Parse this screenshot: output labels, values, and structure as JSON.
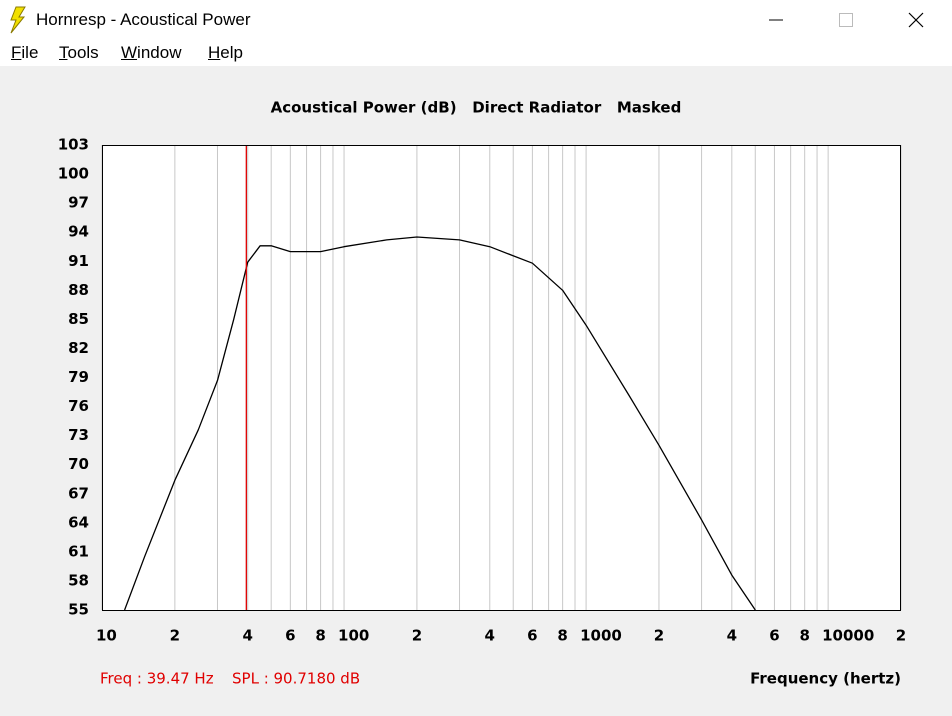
{
  "window": {
    "title": "Hornresp - Acoustical Power"
  },
  "menu": [
    "File",
    "Tools",
    "Window",
    "Help"
  ],
  "chart_data": {
    "type": "line",
    "title": "Acoustical Power (dB)   Direct Radiator   Masked",
    "xlabel": "Frequency (hertz)",
    "xscale": "log",
    "grid": "x",
    "x": [
      12.4,
      15,
      20,
      25,
      30,
      35,
      40,
      45,
      50,
      60,
      80,
      100,
      150,
      200,
      300,
      400,
      600,
      800,
      1000,
      1500,
      2000,
      3000,
      4000,
      5000
    ],
    "series": [
      {
        "color": "#000000",
        "values": [
          55,
          60.5,
          68.4,
          73.6,
          78.7,
          85,
          90.9,
          92.6,
          92.6,
          92.0,
          92.0,
          92.5,
          93.2,
          93.5,
          93.2,
          92.5,
          90.8,
          88.0,
          84.4,
          77.2,
          72.0,
          64.3,
          58.6,
          55
        ]
      }
    ],
    "xlim": [
      10,
      20000
    ],
    "ylim": [
      55,
      103
    ],
    "xticks": [
      10,
      {
        "value": 20,
        "label": "2"
      },
      {
        "value": 30,
        "label": null
      },
      {
        "value": 40,
        "label": "4"
      },
      {
        "value": 50,
        "label": null
      },
      {
        "value": 60,
        "label": "6"
      },
      {
        "value": 70,
        "label": null
      },
      {
        "value": 80,
        "label": "8"
      },
      {
        "value": 90,
        "label": null
      },
      100,
      {
        "value": 200,
        "label": "2"
      },
      {
        "value": 300,
        "label": null
      },
      {
        "value": 400,
        "label": "4"
      },
      {
        "value": 500,
        "label": null
      },
      {
        "value": 600,
        "label": "6"
      },
      {
        "value": 700,
        "label": null
      },
      {
        "value": 800,
        "label": "8"
      },
      {
        "value": 900,
        "label": null
      },
      1000,
      {
        "value": 2000,
        "label": "2"
      },
      {
        "value": 3000,
        "label": null
      },
      {
        "value": 4000,
        "label": "4"
      },
      {
        "value": 5000,
        "label": null
      },
      {
        "value": 6000,
        "label": "6"
      },
      {
        "value": 7000,
        "label": null
      },
      {
        "value": 8000,
        "label": "8"
      },
      {
        "value": 9000,
        "label": null
      },
      10000,
      {
        "value": 20000,
        "label": "2"
      }
    ],
    "yticks": [
      55,
      58,
      61,
      64,
      67,
      70,
      73,
      76,
      79,
      82,
      85,
      88,
      91,
      94,
      97,
      100,
      103
    ],
    "cursor": {
      "x": 39.47,
      "color": "#e00000",
      "freq_label": "Freq : 39.47 Hz",
      "spl_label": "SPL : 90.7180 dB"
    }
  }
}
